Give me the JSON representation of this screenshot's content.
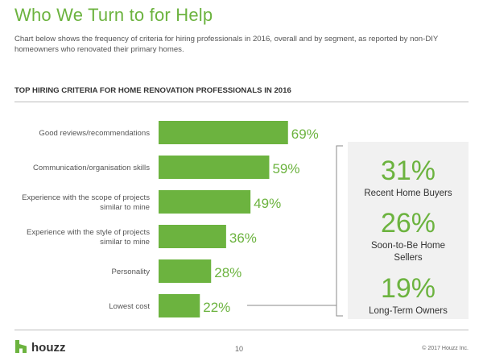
{
  "page": {
    "title": "Who We Turn to for Help",
    "subtitle": "Chart below shows the frequency of criteria for hiring professionals in 2016, overall and by segment, as reported by non-DIY homeowners who renovated their primary homes.",
    "section_heading": "TOP HIRING CRITERIA FOR HOME RENOVATION PROFESSIONALS IN 2016"
  },
  "colors": {
    "accent": "#6cb33f",
    "panel": "#f1f1f1",
    "text": "#555555"
  },
  "chart_data": {
    "type": "bar",
    "orientation": "horizontal",
    "categories": [
      [
        "Good reviews/recommendations"
      ],
      [
        "Communication/organisation skills"
      ],
      [
        "Experience with the scope of projects",
        "similar to mine"
      ],
      [
        "Experience with the style of projects",
        "similar to mine"
      ],
      [
        "Personality"
      ],
      [
        "Lowest cost"
      ]
    ],
    "values": [
      69,
      59,
      49,
      36,
      28,
      22
    ],
    "value_labels": [
      "69%",
      "59%",
      "49%",
      "36%",
      "28%",
      "22%"
    ],
    "xlim": [
      0,
      100
    ],
    "grid": false,
    "legend": "none"
  },
  "segments": [
    {
      "value": "31%",
      "label_lines": [
        "Recent Home Buyers"
      ]
    },
    {
      "value": "26%",
      "label_lines": [
        "Soon-to-Be Home",
        "Sellers"
      ]
    },
    {
      "value": "19%",
      "label_lines": [
        "Long-Term Owners"
      ]
    }
  ],
  "footer": {
    "logo_text": "houzz",
    "page_number": "10",
    "copyright": "© 2017 Houzz Inc."
  }
}
